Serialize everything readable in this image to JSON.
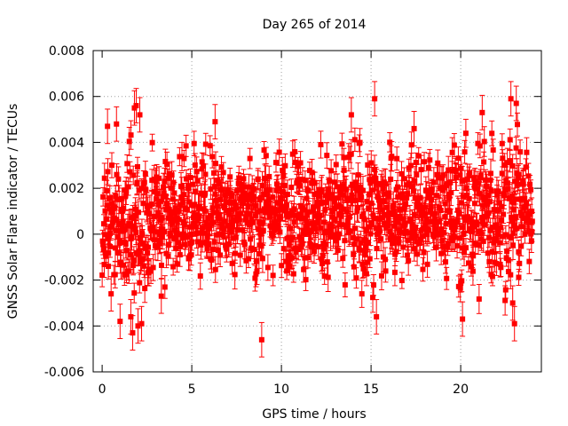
{
  "chart_data": {
    "type": "scatter",
    "title": "Day 265 of 2014",
    "xlabel": "GPS time / hours",
    "ylabel": "GNSS Solar Flare indicator / TECUs",
    "xlim": [
      -0.5,
      24.5
    ],
    "ylim": [
      -0.006,
      0.008
    ],
    "x_ticks": [
      0,
      5,
      10,
      15,
      20
    ],
    "x_tick_labels": [
      "0",
      "5",
      "10",
      "15",
      "20"
    ],
    "y_ticks": [
      -0.006,
      -0.004,
      -0.002,
      0,
      0.002,
      0.004,
      0.006,
      0.008
    ],
    "y_tick_labels": [
      "-0.006",
      "-0.004",
      "-0.002",
      "0",
      "0.002",
      "0.004",
      "0.006",
      "0.008"
    ],
    "grid": true,
    "grid_style": "dotted",
    "marker": "square",
    "error_bars": true,
    "series_color": "#ff0000",
    "series": [
      {
        "name": "",
        "error": 0.0005,
        "x_start": 0.0,
        "x_end": 24.0,
        "base_spread": 0.0013,
        "envelope": [
          {
            "x": 0.0,
            "lower": -0.0025,
            "upper": 0.0031
          },
          {
            "x": 1.0,
            "lower": -0.003,
            "upper": 0.004
          },
          {
            "x": 2.0,
            "lower": -0.004,
            "upper": 0.005
          },
          {
            "x": 3.0,
            "lower": -0.0025,
            "upper": 0.004
          },
          {
            "x": 5.0,
            "lower": -0.002,
            "upper": 0.004
          },
          {
            "x": 7.0,
            "lower": -0.002,
            "upper": 0.004
          },
          {
            "x": 9.0,
            "lower": -0.002,
            "upper": 0.0038
          },
          {
            "x": 11.0,
            "lower": -0.002,
            "upper": 0.004
          },
          {
            "x": 13.0,
            "lower": -0.002,
            "upper": 0.004
          },
          {
            "x": 14.0,
            "lower": -0.003,
            "upper": 0.0048
          },
          {
            "x": 15.0,
            "lower": -0.003,
            "upper": 0.0045
          },
          {
            "x": 17.0,
            "lower": -0.002,
            "upper": 0.004
          },
          {
            "x": 19.0,
            "lower": -0.002,
            "upper": 0.004
          },
          {
            "x": 21.0,
            "lower": -0.003,
            "upper": 0.0048
          },
          {
            "x": 22.0,
            "lower": -0.003,
            "upper": 0.005
          },
          {
            "x": 23.0,
            "lower": -0.0035,
            "upper": 0.0055
          },
          {
            "x": 24.0,
            "lower": -0.0008,
            "upper": 0.003
          }
        ],
        "highlighted_points": [
          {
            "x": 0.3,
            "y": 0.0047
          },
          {
            "x": 0.5,
            "y": -0.0026
          },
          {
            "x": 0.8,
            "y": 0.0048
          },
          {
            "x": 1.0,
            "y": -0.0038
          },
          {
            "x": 1.6,
            "y": -0.0036
          },
          {
            "x": 1.7,
            "y": -0.0043
          },
          {
            "x": 1.8,
            "y": 0.0055
          },
          {
            "x": 1.9,
            "y": 0.0056
          },
          {
            "x": 2.0,
            "y": -0.004
          },
          {
            "x": 2.1,
            "y": 0.0052
          },
          {
            "x": 2.2,
            "y": -0.0039
          },
          {
            "x": 3.3,
            "y": -0.0027
          },
          {
            "x": 6.3,
            "y": 0.0049
          },
          {
            "x": 8.9,
            "y": -0.0046
          },
          {
            "x": 13.9,
            "y": 0.0052
          },
          {
            "x": 15.2,
            "y": 0.0059
          },
          {
            "x": 15.3,
            "y": -0.0036
          },
          {
            "x": 17.4,
            "y": 0.0046
          },
          {
            "x": 20.1,
            "y": -0.0037
          },
          {
            "x": 21.2,
            "y": 0.0053
          },
          {
            "x": 22.8,
            "y": 0.0059
          },
          {
            "x": 23.1,
            "y": 0.0057
          },
          {
            "x": 23.0,
            "y": -0.0039
          },
          {
            "x": 22.9,
            "y": -0.003
          }
        ]
      }
    ]
  }
}
